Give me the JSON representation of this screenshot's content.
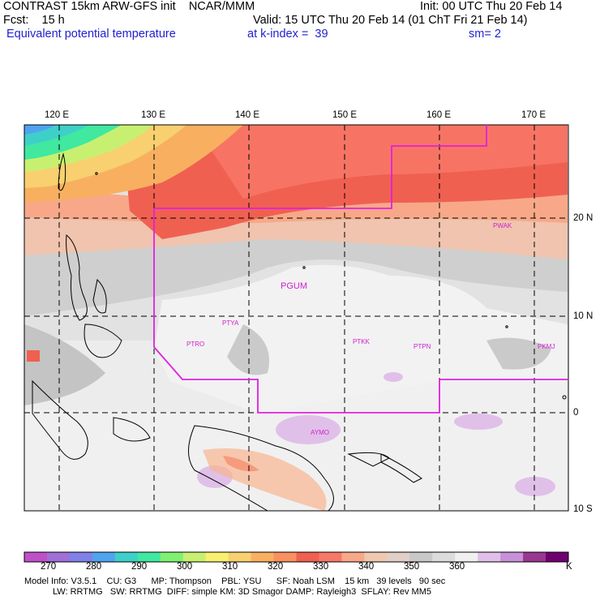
{
  "header": {
    "line1_left": "CONTRAST 15km ARW-GFS init    NCAR/MMM",
    "line1_right": "Init: 00 UTC Thu 20 Feb 14",
    "line2_left": "Fcst:    15 h",
    "line2_right": "Valid: 15 UTC Thu 20 Feb 14 (01 ChT Fri 21 Feb 14)",
    "line3_field": "Equivalent potential temperature",
    "line3_level": "at k-index =  39",
    "line3_smooth": "sm= 2"
  },
  "map": {
    "lon_labels": [
      "120 E",
      "130 E",
      "140 E",
      "150 E",
      "160 E",
      "170 E"
    ],
    "lat_labels": [
      "20 N",
      "10 N",
      "0",
      "10 S"
    ],
    "stations": [
      "PGUM",
      "PTYA",
      "PTRO",
      "PTKK",
      "PTPN",
      "PKMJ",
      "PWAK",
      "AYMO"
    ],
    "colors": {
      "boundary": "#e020e0",
      "station": "#d020d0"
    }
  },
  "colorbar": {
    "labels": [
      "270",
      "280",
      "290",
      "300",
      "310",
      "320",
      "330",
      "340",
      "350",
      "360"
    ],
    "unit": "K",
    "colors": [
      "#c050c8",
      "#a070d8",
      "#8080e8",
      "#4fa4f0",
      "#3ed0c8",
      "#40e8a0",
      "#80f070",
      "#c8f070",
      "#f8f070",
      "#f8d070",
      "#f8b060",
      "#f89060",
      "#f06050",
      "#f87868",
      "#f8a888",
      "#f0c8b0",
      "#e0d0c8",
      "#c8c8c8",
      "#dcdcdc",
      "#f0f0f0",
      "#e0c0e8",
      "#c890d8",
      "#983890",
      "#700070"
    ]
  },
  "model_info": {
    "line1": "Model Info: V3.5.1    CU: G3      MP: Thompson    PBL: YSU      SF: Noah LSM    15 km   39 levels   90 sec",
    "line2": "LW: RRTMG   SW: RRTMG  DIFF: simple KM: 3D Smagor DAMP: Rayleigh3  SFLAY: Rev MM5"
  }
}
